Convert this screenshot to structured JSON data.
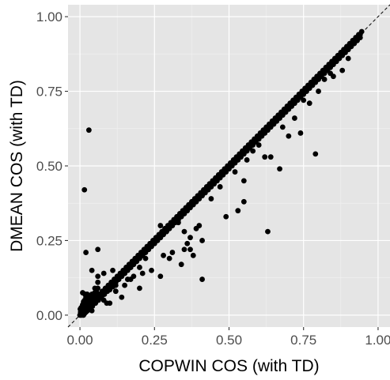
{
  "colors": {
    "panel_background": "#e5e5e5",
    "grid_major": "#ffffff",
    "grid_minor": "#f2f2f2",
    "point": "#000000",
    "reference_line": "#000000"
  },
  "chart_data": {
    "type": "scatter",
    "title": "",
    "xlabel": "COPWIN COS (with TD)",
    "ylabel": "DMEAN COS (with TD)",
    "xlim": [
      -0.04,
      1.04
    ],
    "ylim": [
      -0.04,
      1.04
    ],
    "x_ticks": [
      0.0,
      0.25,
      0.5,
      0.75,
      1.0
    ],
    "x_tick_labels": [
      "0.00",
      "0.25",
      "0.50",
      "0.75",
      "1.00"
    ],
    "y_ticks": [
      0.0,
      0.25,
      0.5,
      0.75,
      1.0
    ],
    "y_tick_labels": [
      "0.00",
      "0.25",
      "0.50",
      "0.75",
      "1.00"
    ],
    "grid": true,
    "reference_line": {
      "type": "identity",
      "style": "dashed",
      "from": [
        -0.04,
        -0.04
      ],
      "to": [
        1.04,
        1.04
      ]
    },
    "series": [
      {
        "x": [
          0.0,
          0.01,
          0.02,
          0.03,
          0.04,
          0.05,
          0.06,
          0.07,
          0.08,
          0.09,
          0.1,
          0.11,
          0.12,
          0.13,
          0.14,
          0.15,
          0.16,
          0.17,
          0.18,
          0.19,
          0.2,
          0.21,
          0.22,
          0.23,
          0.24,
          0.25,
          0.26,
          0.27,
          0.28,
          0.29,
          0.3,
          0.31,
          0.32,
          0.33,
          0.34,
          0.35,
          0.36,
          0.37,
          0.38,
          0.39,
          0.4,
          0.41,
          0.42,
          0.43,
          0.44,
          0.45,
          0.46,
          0.47,
          0.48,
          0.49,
          0.5,
          0.51,
          0.52,
          0.53,
          0.54,
          0.55,
          0.56,
          0.57,
          0.58,
          0.59,
          0.6,
          0.61,
          0.62,
          0.63,
          0.64,
          0.65,
          0.66,
          0.67,
          0.68,
          0.69,
          0.7,
          0.71,
          0.72,
          0.73,
          0.74,
          0.75,
          0.76,
          0.77,
          0.78,
          0.79,
          0.8,
          0.81,
          0.82,
          0.83,
          0.84,
          0.85,
          0.86,
          0.87,
          0.88,
          0.89,
          0.9,
          0.91,
          0.92,
          0.93,
          0.94,
          0.005,
          0.015,
          0.025,
          0.035,
          0.045,
          0.055,
          0.065,
          0.075,
          0.085,
          0.095,
          0.105,
          0.115,
          0.125,
          0.135,
          0.145,
          0.155,
          0.165,
          0.175,
          0.185,
          0.195,
          0.205,
          0.215,
          0.225,
          0.235,
          0.245,
          0.255,
          0.265,
          0.275,
          0.285,
          0.295,
          0.305,
          0.315,
          0.325,
          0.335,
          0.345,
          0.355,
          0.365,
          0.375,
          0.385,
          0.395,
          0.405,
          0.415,
          0.425,
          0.435,
          0.445,
          0.455,
          0.465,
          0.475,
          0.485,
          0.495,
          0.505,
          0.515,
          0.525,
          0.535,
          0.545,
          0.555,
          0.565,
          0.575,
          0.585,
          0.595,
          0.605,
          0.615,
          0.625,
          0.635,
          0.645,
          0.655,
          0.665,
          0.675,
          0.685,
          0.695,
          0.705,
          0.715,
          0.725,
          0.735,
          0.745,
          0.755,
          0.765,
          0.775,
          0.785,
          0.795,
          0.805,
          0.815,
          0.825,
          0.835,
          0.845,
          0.855,
          0.865,
          0.875,
          0.885,
          0.895,
          0.905,
          0.915,
          0.925,
          0.935,
          0.945,
          0.0,
          0.002,
          0.004,
          0.006,
          0.008,
          0.01,
          0.012,
          0.014,
          0.016,
          0.018,
          0.02,
          0.022,
          0.024,
          0.026,
          0.028,
          0.03,
          0.035,
          0.04,
          0.045,
          0.05,
          0.055,
          0.06,
          0.003,
          0.007,
          0.012,
          0.017,
          0.022,
          0.027,
          0.032,
          0.042,
          0.052,
          0.062,
          0.072,
          0.082,
          0.092,
          0.1,
          0.11,
          0.12,
          0.13,
          0.14,
          0.15,
          0.16,
          0.17,
          0.18,
          0.19,
          0.2,
          0.21,
          0.22,
          0.23,
          0.24,
          0.25,
          0.26,
          0.27,
          0.28,
          0.29,
          0.3,
          0.32,
          0.34,
          0.36,
          0.38,
          0.4,
          0.42,
          0.44,
          0.46,
          0.48,
          0.5,
          0.52,
          0.54,
          0.56,
          0.58,
          0.6,
          0.62,
          0.64,
          0.66,
          0.68,
          0.7,
          0.72,
          0.74,
          0.76,
          0.78,
          0.8,
          0.82,
          0.84,
          0.86,
          0.88,
          0.9,
          0.92,
          0.94,
          0.001,
          0.004,
          0.009,
          0.013,
          0.019,
          0.024,
          0.029,
          0.036,
          0.044,
          0.005,
          0.01,
          0.015,
          0.02,
          0.025,
          0.03,
          0.035,
          0.04,
          0.045,
          0.05,
          0.06,
          0.07,
          0.08,
          0.09,
          0.1,
          0.11,
          0.12,
          0.13,
          0.14,
          0.15,
          0.17,
          0.19,
          0.21,
          0.23,
          0.25,
          0.27,
          0.29,
          0.31,
          0.33,
          0.35,
          0.37,
          0.39,
          0.41,
          0.43,
          0.45,
          0.47,
          0.49,
          0.51,
          0.53,
          0.55,
          0.57,
          0.59,
          0.61,
          0.63,
          0.65,
          0.67,
          0.69,
          0.71,
          0.73,
          0.75,
          0.77,
          0.79,
          0.81,
          0.83,
          0.85,
          0.87,
          0.89,
          0.91,
          0.93,
          0.03,
          0.015,
          0.06,
          0.02,
          0.04,
          0.05,
          0.06,
          0.07,
          0.08,
          0.09,
          0.1,
          0.12,
          0.14,
          0.16,
          0.18,
          0.22,
          0.24,
          0.27,
          0.28,
          0.3,
          0.31,
          0.34,
          0.35,
          0.37,
          0.38,
          0.4,
          0.41,
          0.44,
          0.47,
          0.49,
          0.52,
          0.53,
          0.55,
          0.56,
          0.58,
          0.6,
          0.62,
          0.64,
          0.67,
          0.68,
          0.7,
          0.72,
          0.74,
          0.75,
          0.77,
          0.78,
          0.8,
          0.82,
          0.84,
          0.86,
          0.88,
          0.9,
          0.15,
          0.2,
          0.29,
          0.33,
          0.37,
          0.39,
          0.2,
          0.21,
          0.35,
          0.36,
          0.12,
          0.17,
          0.04,
          0.025,
          0.012,
          0.017,
          0.009,
          0.06,
          0.08,
          0.11,
          0.27,
          0.41,
          0.55,
          0.63,
          0.79,
          0.85
        ],
        "y": [
          0.0,
          0.01,
          0.02,
          0.03,
          0.04,
          0.05,
          0.06,
          0.07,
          0.08,
          0.09,
          0.1,
          0.11,
          0.12,
          0.13,
          0.14,
          0.15,
          0.16,
          0.17,
          0.18,
          0.19,
          0.2,
          0.21,
          0.22,
          0.23,
          0.24,
          0.25,
          0.26,
          0.27,
          0.28,
          0.29,
          0.3,
          0.31,
          0.32,
          0.33,
          0.34,
          0.35,
          0.36,
          0.37,
          0.38,
          0.39,
          0.4,
          0.41,
          0.42,
          0.43,
          0.44,
          0.45,
          0.46,
          0.47,
          0.48,
          0.49,
          0.5,
          0.51,
          0.52,
          0.53,
          0.54,
          0.55,
          0.56,
          0.57,
          0.58,
          0.59,
          0.6,
          0.61,
          0.62,
          0.63,
          0.64,
          0.65,
          0.66,
          0.67,
          0.68,
          0.69,
          0.7,
          0.71,
          0.72,
          0.73,
          0.74,
          0.75,
          0.76,
          0.77,
          0.78,
          0.79,
          0.8,
          0.81,
          0.82,
          0.83,
          0.84,
          0.85,
          0.86,
          0.87,
          0.88,
          0.89,
          0.9,
          0.91,
          0.92,
          0.93,
          0.94,
          0.01,
          0.02,
          0.03,
          0.04,
          0.05,
          0.06,
          0.07,
          0.08,
          0.09,
          0.1,
          0.11,
          0.12,
          0.13,
          0.14,
          0.15,
          0.16,
          0.17,
          0.18,
          0.19,
          0.2,
          0.21,
          0.22,
          0.23,
          0.24,
          0.25,
          0.26,
          0.27,
          0.28,
          0.29,
          0.3,
          0.31,
          0.32,
          0.33,
          0.34,
          0.35,
          0.36,
          0.37,
          0.38,
          0.39,
          0.4,
          0.41,
          0.42,
          0.43,
          0.44,
          0.45,
          0.46,
          0.47,
          0.48,
          0.49,
          0.5,
          0.51,
          0.52,
          0.53,
          0.54,
          0.55,
          0.56,
          0.57,
          0.58,
          0.59,
          0.6,
          0.61,
          0.62,
          0.63,
          0.64,
          0.65,
          0.66,
          0.67,
          0.68,
          0.69,
          0.7,
          0.71,
          0.72,
          0.73,
          0.74,
          0.75,
          0.76,
          0.77,
          0.78,
          0.79,
          0.8,
          0.81,
          0.82,
          0.83,
          0.84,
          0.85,
          0.86,
          0.87,
          0.88,
          0.89,
          0.9,
          0.91,
          0.92,
          0.93,
          0.94,
          0.95,
          0.0,
          0.01,
          0.02,
          0.005,
          0.03,
          0.015,
          0.04,
          0.02,
          0.05,
          0.03,
          0.06,
          0.025,
          0.07,
          0.04,
          0.045,
          0.05,
          0.06,
          0.07,
          0.065,
          0.075,
          0.08,
          0.09,
          0.0,
          0.005,
          0.0,
          0.01,
          0.015,
          0.02,
          0.03,
          0.03,
          0.04,
          0.05,
          0.06,
          0.07,
          0.08,
          0.085,
          0.095,
          0.11,
          0.12,
          0.13,
          0.14,
          0.15,
          0.16,
          0.17,
          0.18,
          0.19,
          0.2,
          0.21,
          0.22,
          0.23,
          0.24,
          0.25,
          0.26,
          0.27,
          0.28,
          0.29,
          0.31,
          0.33,
          0.35,
          0.37,
          0.39,
          0.41,
          0.43,
          0.45,
          0.47,
          0.49,
          0.51,
          0.53,
          0.55,
          0.57,
          0.59,
          0.61,
          0.63,
          0.65,
          0.67,
          0.69,
          0.71,
          0.73,
          0.75,
          0.77,
          0.79,
          0.81,
          0.83,
          0.85,
          0.87,
          0.89,
          0.91,
          0.93,
          0.02,
          0.025,
          0.035,
          0.045,
          0.05,
          0.055,
          0.06,
          0.065,
          0.07,
          0.0,
          0.0,
          0.005,
          0.01,
          0.015,
          0.02,
          0.03,
          0.035,
          0.04,
          0.045,
          0.05,
          0.06,
          0.07,
          0.08,
          0.09,
          0.1,
          0.11,
          0.12,
          0.13,
          0.14,
          0.16,
          0.18,
          0.2,
          0.22,
          0.24,
          0.26,
          0.28,
          0.3,
          0.32,
          0.34,
          0.36,
          0.38,
          0.4,
          0.42,
          0.44,
          0.46,
          0.48,
          0.5,
          0.52,
          0.54,
          0.56,
          0.58,
          0.6,
          0.62,
          0.64,
          0.66,
          0.68,
          0.7,
          0.72,
          0.74,
          0.76,
          0.78,
          0.8,
          0.82,
          0.84,
          0.86,
          0.88,
          0.9,
          0.92,
          0.62,
          0.42,
          0.22,
          0.21,
          0.15,
          0.09,
          0.13,
          0.06,
          0.05,
          0.04,
          0.04,
          0.1,
          0.06,
          0.12,
          0.13,
          0.19,
          0.15,
          0.13,
          0.2,
          0.19,
          0.21,
          0.17,
          0.28,
          0.22,
          0.2,
          0.3,
          0.25,
          0.39,
          0.43,
          0.33,
          0.48,
          0.35,
          0.45,
          0.52,
          0.55,
          0.57,
          0.53,
          0.53,
          0.49,
          0.63,
          0.6,
          0.66,
          0.61,
          0.72,
          0.71,
          0.78,
          0.75,
          0.79,
          0.81,
          0.85,
          0.82,
          0.86,
          0.1,
          0.09,
          0.28,
          0.31,
          0.26,
          0.29,
          0.16,
          0.14,
          0.22,
          0.24,
          0.08,
          0.12,
          0.015,
          0.06,
          0.045,
          0.07,
          0.075,
          0.11,
          0.14,
          0.15,
          0.3,
          0.12,
          0.38,
          0.28,
          0.54,
          0.8
        ]
      }
    ]
  }
}
